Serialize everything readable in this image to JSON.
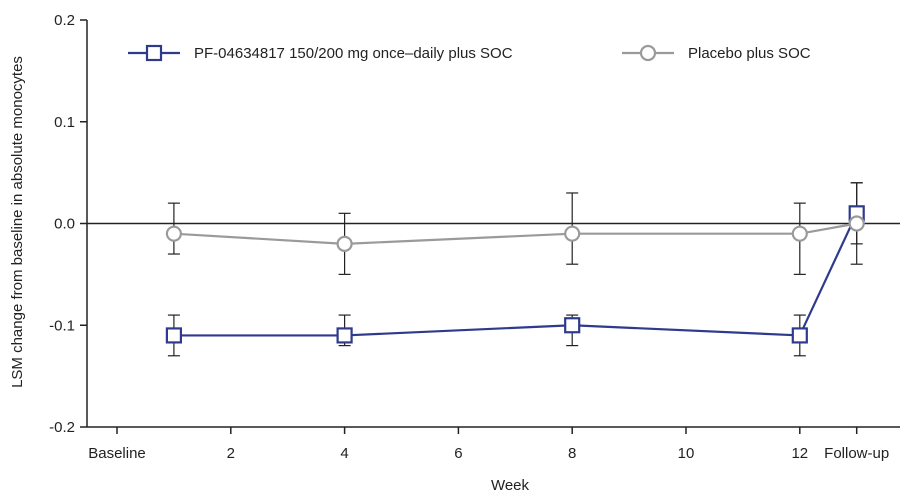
{
  "chart_data": {
    "type": "line",
    "xlabel": "Week",
    "ylabel": "LSM change from baseline in absolute monocytes",
    "ylim": [
      -0.2,
      0.2
    ],
    "xlim": [
      -1,
      14
    ],
    "x_ticks": [
      {
        "value": 0,
        "label": "Baseline"
      },
      {
        "value": 2,
        "label": "2"
      },
      {
        "value": 4,
        "label": "4"
      },
      {
        "value": 6,
        "label": "6"
      },
      {
        "value": 8,
        "label": "8"
      },
      {
        "value": 10,
        "label": "10"
      },
      {
        "value": 12,
        "label": "12"
      },
      {
        "value": 13,
        "label": "Follow-up"
      }
    ],
    "y_ticks": [
      {
        "value": 0.2,
        "label": "0.2"
      },
      {
        "value": 0.1,
        "label": "0.1"
      },
      {
        "value": 0.0,
        "label": "0.0"
      },
      {
        "value": -0.1,
        "label": "-0.1"
      },
      {
        "value": -0.2,
        "label": "-0.2"
      }
    ],
    "reference_line_y": 0,
    "grid": false,
    "legend_position": "top",
    "series": [
      {
        "name": "PF-04634817 150/200 mg once–daily plus SOC",
        "color": "#2e3a8c",
        "marker": "square",
        "x": [
          1,
          4,
          8,
          12,
          13
        ],
        "y": [
          -0.11,
          -0.11,
          -0.1,
          -0.11,
          0.01
        ],
        "error_low": [
          -0.13,
          -0.12,
          -0.12,
          -0.13,
          -0.02
        ],
        "error_high": [
          -0.09,
          -0.09,
          -0.09,
          -0.09,
          0.04
        ]
      },
      {
        "name": "Placebo plus SOC",
        "color": "#9a9a9a",
        "marker": "circle",
        "x": [
          1,
          4,
          8,
          12,
          13
        ],
        "y": [
          -0.01,
          -0.02,
          -0.01,
          -0.01,
          0.0
        ],
        "error_low": [
          -0.03,
          -0.05,
          -0.04,
          -0.05,
          -0.04
        ],
        "error_high": [
          0.02,
          0.01,
          0.03,
          0.02,
          0.04
        ]
      }
    ]
  }
}
